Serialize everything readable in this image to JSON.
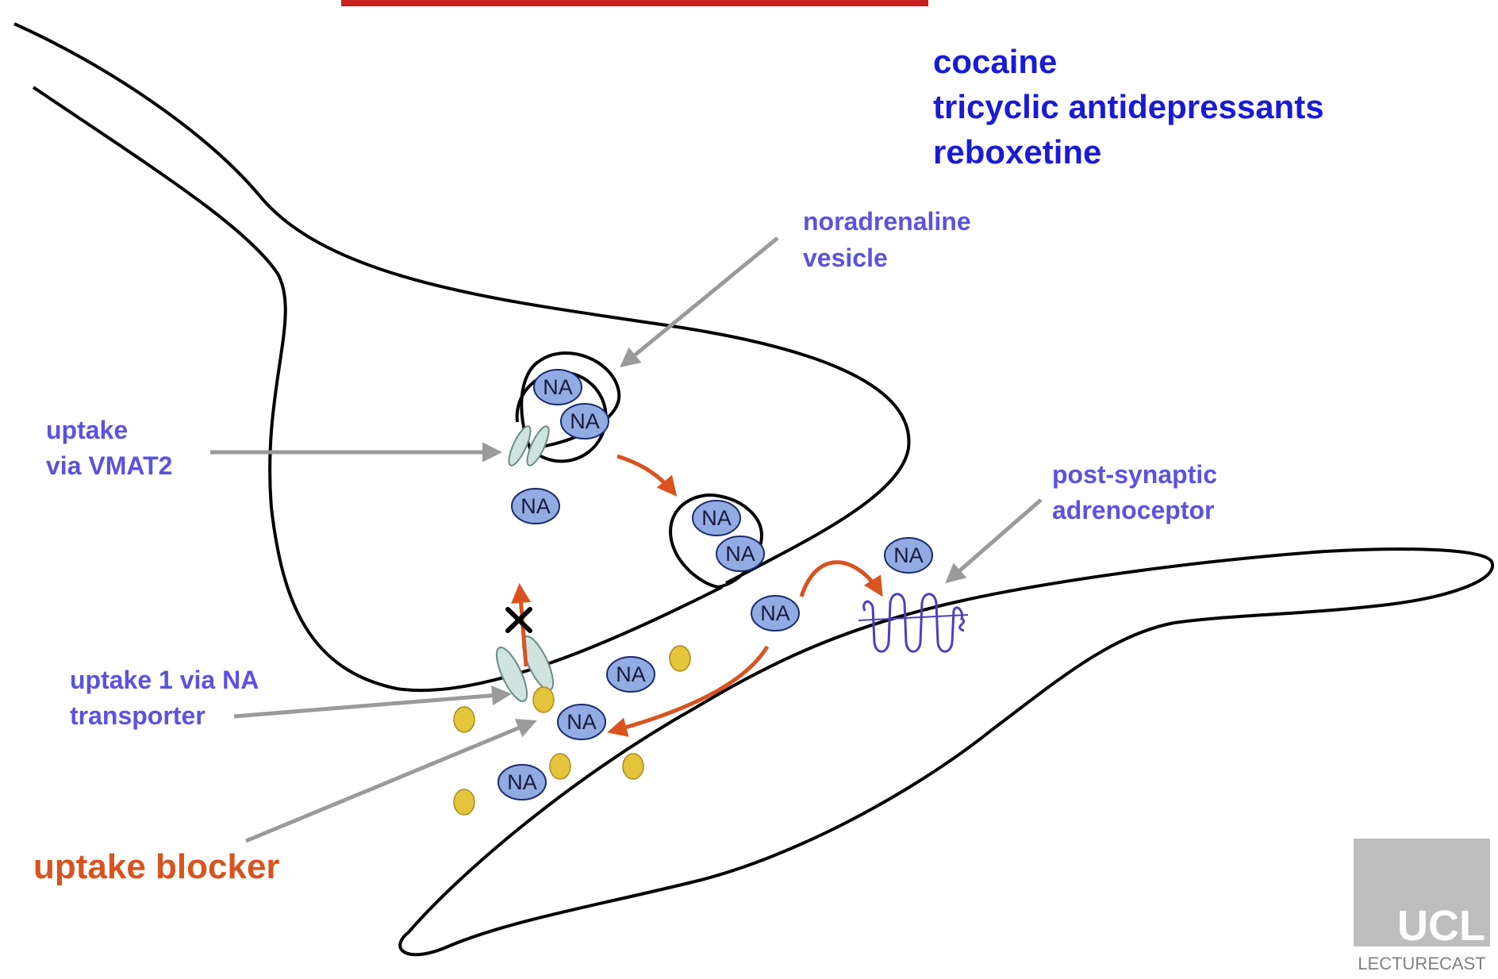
{
  "drugs": {
    "line1": "cocaine",
    "line2": "tricyclic antidepressants",
    "line3": "reboxetine"
  },
  "labels": {
    "vesicle_line1": "noradrenaline",
    "vesicle_line2": "vesicle",
    "vmat_line1": "uptake",
    "vmat_line2": "via VMAT2",
    "receptor_line1": "post-synaptic",
    "receptor_line2": "adrenoceptor",
    "transporter_line1": "uptake 1 via NA",
    "transporter_line2": "transporter",
    "blocker": "uptake blocker"
  },
  "molecule_label": "NA",
  "watermark": {
    "logo": "UCL",
    "caption": "LECTURECAST"
  },
  "colors": {
    "drug_text": "#1a1ad6",
    "label_text": "#5a52e0",
    "blocker_text": "#d9531e",
    "orange_arrow": "#d9531e",
    "grey_arrow": "#9a9a9a",
    "na_fill": "#92ace3",
    "blocker_dot": "#e3c43a",
    "transporter_fill": "#cfe3df"
  }
}
